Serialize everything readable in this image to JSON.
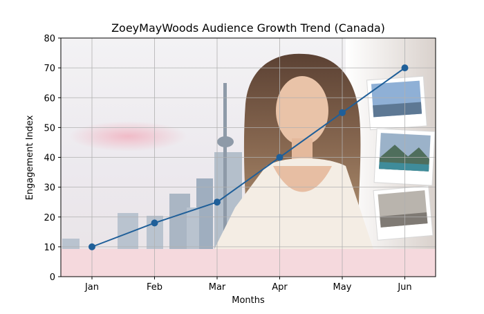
{
  "chart_data": {
    "type": "line",
    "title": "ZoeyMayWoods Audience Growth Trend (Canada)",
    "xlabel": "Months",
    "ylabel": "Engagement Index",
    "categories": [
      "Jan",
      "Feb",
      "Mar",
      "Apr",
      "May",
      "Jun"
    ],
    "series": [
      {
        "name": "",
        "values": [
          10,
          18,
          25,
          40,
          55,
          70
        ],
        "color": "#1f5f99"
      }
    ],
    "ylim": [
      0,
      80
    ],
    "yticks": [
      0,
      10,
      20,
      30,
      40,
      50,
      60,
      70,
      80
    ],
    "grid": true,
    "legend": "none",
    "background": "photo-collage"
  },
  "colors": {
    "line": "#1f5f99",
    "grid": "#b0b0b0",
    "band": "#f5d9dd"
  }
}
